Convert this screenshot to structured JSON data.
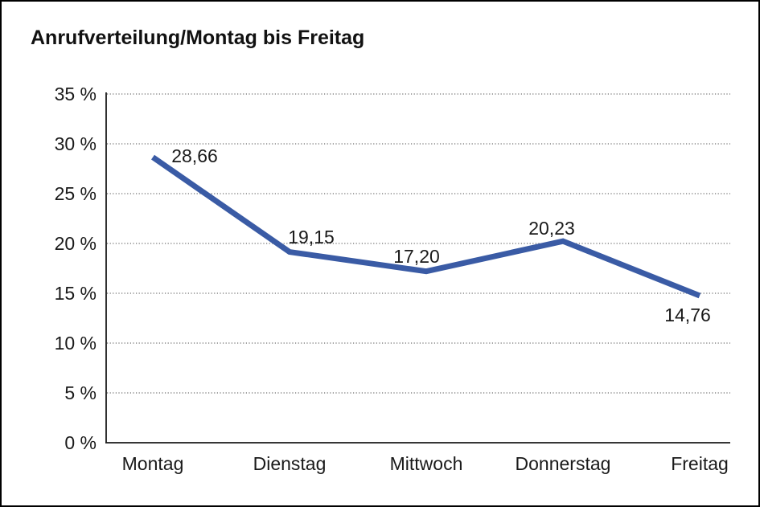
{
  "window": {
    "background_color": "#ffffff",
    "border_color": "#000000"
  },
  "chart_data": {
    "type": "line",
    "title": "Anrufverteilung/Montag bis Freitag",
    "categories": [
      "Montag",
      "Dienstag",
      "Mittwoch",
      "Donnerstag",
      "Freitag"
    ],
    "values": [
      28.66,
      19.15,
      17.2,
      20.23,
      14.76
    ],
    "value_labels": [
      "28,66",
      "19,15",
      "17,20",
      "20,23",
      "14,76"
    ],
    "unit": "%",
    "xlabel": "",
    "ylabel": "",
    "ylim": [
      0,
      35
    ],
    "ytick_step": 5,
    "ytick_labels": [
      "0 %",
      "5 %",
      "10 %",
      "15 %",
      "20 %",
      "25 %",
      "30 %",
      "35 %"
    ],
    "grid": "horizontal-dotted",
    "legend": "none",
    "line_color": "#3A5BA5",
    "axis_color": "#1a1a1a",
    "gridline_color": "#4a4a4a",
    "text_color": "#1a1a1a"
  }
}
